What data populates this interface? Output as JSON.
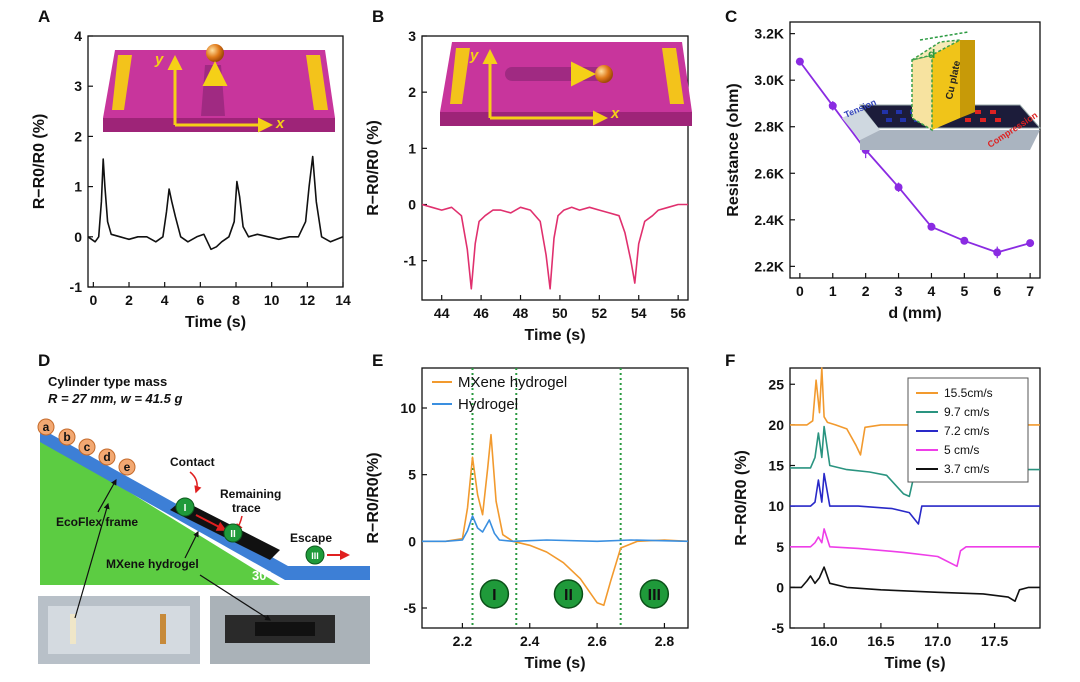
{
  "panel_labels": [
    "A",
    "B",
    "C",
    "D",
    "E",
    "F"
  ],
  "colors": {
    "A": "#111111",
    "B": "#e0306e",
    "C": "#8a2be2",
    "mxene": "#f29a2e",
    "hydrogel": "#3a8fe0",
    "s155": "#f29a2e",
    "s97": "#2a9480",
    "s72": "#2929c8",
    "s5": "#ee3ee8",
    "s37": "#111111",
    "marker": "#2a9a40"
  },
  "chart_data": [
    {
      "id": "A",
      "type": "line",
      "xlabel": "Time (s)",
      "ylabel": "R−R0/R0 (%)",
      "xlim": [
        -0.3,
        14
      ],
      "ylim": [
        -1,
        4
      ],
      "xticks": [
        0,
        2,
        4,
        6,
        8,
        10,
        12,
        14
      ],
      "yticks": [
        -1,
        0,
        1,
        2,
        3,
        4
      ],
      "series": [
        {
          "x": [
            -0.3,
            0.1,
            0.3,
            0.45,
            0.55,
            0.65,
            0.8,
            1.0,
            1.5,
            2.0,
            2.5,
            3.0,
            3.5,
            3.9,
            4.1,
            4.25,
            4.4,
            4.6,
            4.9,
            5.3,
            5.8,
            6.2,
            6.6,
            6.9,
            7.2,
            7.6,
            7.9,
            8.05,
            8.2,
            8.4,
            8.7,
            9.2,
            9.8,
            10.4,
            11.0,
            11.5,
            11.9,
            12.1,
            12.3,
            12.5,
            12.8,
            13.3,
            14.0
          ],
          "y": [
            0.0,
            -0.1,
            0.0,
            0.7,
            1.55,
            1.0,
            0.3,
            0.05,
            0.0,
            -0.05,
            0.0,
            0.0,
            -0.1,
            0.0,
            0.5,
            0.95,
            0.7,
            0.4,
            0.0,
            -0.1,
            0.0,
            0.05,
            -0.25,
            -0.2,
            -0.1,
            0.0,
            0.3,
            1.1,
            0.8,
            0.2,
            0.0,
            0.05,
            0.0,
            -0.05,
            0.0,
            0.0,
            0.3,
            1.0,
            1.6,
            0.7,
            0.0,
            -0.1,
            0.0
          ]
        }
      ]
    },
    {
      "id": "B",
      "type": "line",
      "xlabel": "Time (s)",
      "ylabel": "R−R0/R0 (%)",
      "xlim": [
        43,
        56.5
      ],
      "ylim": [
        -1.7,
        3
      ],
      "xticks": [
        44,
        46,
        48,
        50,
        52,
        54,
        56
      ],
      "yticks": [
        -1,
        0,
        1,
        2,
        3
      ],
      "series": [
        {
          "x": [
            43.0,
            43.5,
            44.0,
            44.5,
            45.0,
            45.3,
            45.5,
            45.7,
            45.9,
            46.2,
            46.6,
            47.0,
            47.5,
            48.0,
            48.5,
            49.0,
            49.3,
            49.5,
            49.7,
            49.9,
            50.2,
            50.6,
            51.0,
            51.5,
            52.0,
            52.5,
            53.0,
            53.3,
            53.6,
            53.8,
            54.0,
            54.3,
            54.7,
            55.0,
            55.5,
            56.0,
            56.5
          ],
          "y": [
            0.0,
            -0.05,
            -0.1,
            -0.05,
            -0.2,
            -0.8,
            -1.5,
            -0.7,
            -0.3,
            -0.2,
            -0.1,
            -0.1,
            -0.15,
            -0.05,
            -0.1,
            -0.3,
            -0.9,
            -1.5,
            -0.6,
            -0.2,
            -0.1,
            -0.05,
            -0.1,
            -0.05,
            -0.1,
            -0.15,
            -0.2,
            -0.5,
            -1.0,
            -1.4,
            -0.7,
            -0.3,
            -0.2,
            -0.1,
            -0.05,
            0.0,
            0.0
          ]
        }
      ]
    },
    {
      "id": "C",
      "type": "line",
      "xlabel": "d (mm)",
      "ylabel": "Resistance (ohm)",
      "xlim": [
        -0.3,
        7.3
      ],
      "ylim": [
        2150,
        3250
      ],
      "xticks": [
        0,
        1,
        2,
        3,
        4,
        5,
        6,
        7
      ],
      "yticks": [
        2200,
        2400,
        2600,
        2800,
        3000,
        3200
      ],
      "ytick_labels": [
        "2.2K",
        "2.4K",
        "2.6K",
        "2.8K",
        "3.0K",
        "3.2K"
      ],
      "series": [
        {
          "x": [
            0,
            1,
            2,
            3,
            4,
            5,
            6,
            7
          ],
          "y": [
            3080,
            2890,
            2700,
            2540,
            2370,
            2310,
            2260,
            2300
          ],
          "err": [
            15,
            20,
            35,
            20,
            15,
            15,
            25,
            15
          ]
        }
      ],
      "inset": {
        "labels": [
          "d",
          "Cu plate",
          "Tension",
          "Compression"
        ]
      }
    },
    {
      "id": "E",
      "type": "line",
      "xlabel": "Time (s)",
      "ylabel": "R−R0/R0(%)",
      "xlim": [
        2.08,
        2.87
      ],
      "ylim": [
        -6.5,
        13
      ],
      "xticks": [
        2.2,
        2.4,
        2.6,
        2.8
      ],
      "yticks": [
        -5,
        0,
        5,
        10
      ],
      "legend": "top-left",
      "series": [
        {
          "name": "MXene hydrogel",
          "x": [
            2.08,
            2.15,
            2.2,
            2.215,
            2.23,
            2.245,
            2.26,
            2.275,
            2.285,
            2.3,
            2.32,
            2.35,
            2.4,
            2.45,
            2.5,
            2.55,
            2.6,
            2.62,
            2.64,
            2.67,
            2.72,
            2.8,
            2.87
          ],
          "y": [
            0.0,
            0.0,
            0.2,
            2.5,
            6.3,
            3.5,
            2.0,
            5.5,
            8.0,
            3.0,
            0.5,
            0.0,
            -0.3,
            -0.8,
            -1.6,
            -2.8,
            -4.6,
            -4.8,
            -3.0,
            -0.5,
            0.0,
            0.1,
            0.0
          ]
        },
        {
          "name": "Hydrogel",
          "x": [
            2.08,
            2.15,
            2.2,
            2.215,
            2.23,
            2.245,
            2.26,
            2.28,
            2.295,
            2.31,
            2.35,
            2.45,
            2.6,
            2.7,
            2.87
          ],
          "y": [
            0.0,
            0.0,
            0.1,
            0.8,
            1.9,
            1.0,
            0.7,
            1.6,
            0.6,
            0.1,
            0.0,
            0.1,
            0.0,
            0.1,
            0.0
          ]
        }
      ],
      "dividers": [
        2.23,
        2.36,
        2.67
      ],
      "markers": [
        {
          "label": "I",
          "x": 2.295
        },
        {
          "label": "II",
          "x": 2.515
        },
        {
          "label": "III",
          "x": 2.77
        }
      ]
    },
    {
      "id": "F",
      "type": "line",
      "xlabel": "Time (s)",
      "ylabel": "R−R0/R0 (%)",
      "xlim": [
        15.7,
        17.9
      ],
      "ylim": [
        -5,
        27
      ],
      "xticks": [
        16.0,
        16.5,
        17.0,
        17.5
      ],
      "yticks": [
        -5,
        0,
        5,
        10,
        15,
        20,
        25
      ],
      "legend": "top-right",
      "series": [
        {
          "name": "15.5cm/s",
          "x": [
            15.7,
            15.85,
            15.9,
            15.93,
            15.96,
            15.98,
            16.0,
            16.03,
            16.1,
            16.2,
            16.28,
            16.32,
            16.36,
            16.5,
            17.0,
            17.9
          ],
          "y": [
            20.0,
            20.0,
            20.5,
            25.5,
            21.5,
            27.0,
            21.0,
            20.3,
            20.0,
            19.5,
            17.5,
            16.3,
            19.7,
            20.0,
            20.0,
            20.0
          ]
        },
        {
          "name": "9.7 cm/s",
          "x": [
            15.7,
            15.88,
            15.92,
            15.95,
            15.98,
            16.0,
            16.05,
            16.2,
            16.4,
            16.55,
            16.7,
            16.75,
            16.8,
            17.0,
            17.9
          ],
          "y": [
            14.7,
            14.7,
            16.0,
            19.0,
            16.0,
            19.8,
            15.0,
            14.5,
            14.2,
            13.8,
            11.5,
            11.2,
            14.3,
            14.5,
            14.5
          ]
        },
        {
          "name": "7.2 cm/s",
          "x": [
            15.7,
            15.88,
            15.92,
            15.95,
            15.98,
            16.0,
            16.05,
            16.3,
            16.6,
            16.75,
            16.83,
            16.86,
            17.0,
            17.9
          ],
          "y": [
            10.0,
            10.0,
            10.5,
            13.2,
            10.5,
            14.0,
            10.0,
            10.0,
            9.7,
            9.2,
            7.8,
            10.0,
            10.0,
            10.0
          ]
        },
        {
          "name": "5 cm/s",
          "x": [
            15.7,
            15.88,
            15.92,
            15.95,
            15.98,
            16.0,
            16.05,
            16.3,
            16.7,
            17.0,
            17.17,
            17.2,
            17.25,
            17.5,
            17.9
          ],
          "y": [
            5.0,
            5.0,
            5.5,
            6.2,
            5.5,
            7.2,
            5.0,
            4.8,
            4.3,
            3.8,
            2.6,
            4.5,
            5.0,
            5.0,
            5.0
          ]
        },
        {
          "name": "3.7 cm/s",
          "x": [
            15.7,
            15.8,
            15.85,
            15.88,
            15.92,
            15.96,
            16.0,
            16.05,
            16.2,
            16.5,
            17.0,
            17.4,
            17.62,
            17.68,
            17.72,
            17.8,
            17.9
          ],
          "y": [
            0.0,
            0.0,
            0.8,
            1.4,
            0.5,
            1.2,
            2.5,
            0.5,
            0.0,
            -0.3,
            -0.6,
            -0.8,
            -1.2,
            -1.7,
            -0.3,
            0.0,
            0.0
          ]
        }
      ]
    }
  ],
  "panel_D": {
    "title_line1": "Cylinder type mass",
    "title_line2": "R = 27 mm, w = 41.5 g",
    "balls": [
      "a",
      "b",
      "c",
      "d",
      "e"
    ],
    "contact": "Contact",
    "remaining1": "Remaining",
    "remaining2": "trace",
    "escape": "Escape",
    "ecoflex": "EcoFlex frame",
    "mxene": "MXene hydrogel",
    "angle": "30°",
    "stages": [
      "I",
      "II",
      "III"
    ]
  },
  "insets": {
    "A_axes": [
      "y",
      "x"
    ],
    "B_axes": [
      "y",
      "x"
    ]
  }
}
